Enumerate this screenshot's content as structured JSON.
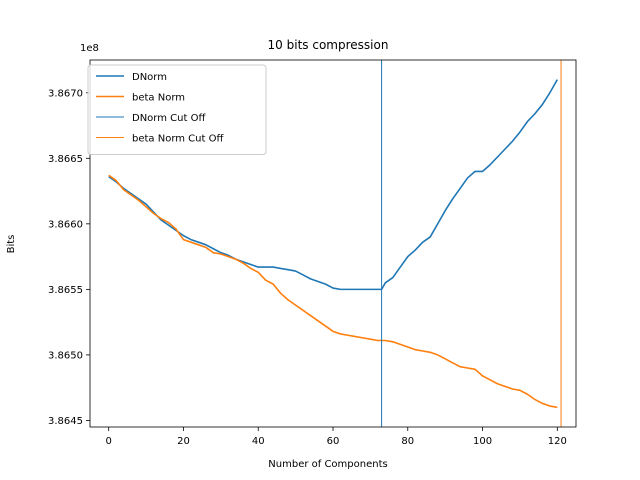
{
  "chart_data": {
    "type": "line",
    "title": "10 bits compression",
    "xlabel": "Number of Components",
    "ylabel": "Bits",
    "y_offset_label": "1e8",
    "xlim": [
      -5,
      125
    ],
    "ylim": [
      3.86445,
      3.86725
    ],
    "y_scale_factor": 100000000,
    "xticks": [
      0,
      20,
      40,
      60,
      80,
      100,
      120
    ],
    "yticks": [
      3.8645,
      3.865,
      3.8655,
      3.866,
      3.8665,
      3.867
    ],
    "ytick_labels": [
      "3.8645",
      "3.8650",
      "3.8655",
      "3.8660",
      "3.8665",
      "3.8670"
    ],
    "legend_position": "upper-left",
    "series": [
      {
        "name": "DNorm",
        "color": "#1f77b4",
        "x": [
          0,
          2,
          4,
          6,
          8,
          10,
          12,
          14,
          16,
          18,
          20,
          22,
          24,
          26,
          28,
          30,
          32,
          34,
          36,
          38,
          40,
          42,
          44,
          46,
          48,
          50,
          52,
          54,
          56,
          58,
          60,
          62,
          64,
          66,
          68,
          70,
          72,
          73,
          74,
          76,
          78,
          80,
          82,
          84,
          86,
          88,
          90,
          92,
          94,
          96,
          98,
          100,
          102,
          104,
          106,
          108,
          110,
          112,
          114,
          116,
          118,
          120
        ],
        "y": [
          3.86636,
          3.86632,
          3.86627,
          3.86623,
          3.86619,
          3.86615,
          3.86609,
          3.86603,
          3.86599,
          3.86595,
          3.86591,
          3.86588,
          3.86586,
          3.86584,
          3.86581,
          3.86578,
          3.86576,
          3.86573,
          3.86571,
          3.86569,
          3.86567,
          3.86567,
          3.86567,
          3.86566,
          3.86565,
          3.86564,
          3.86561,
          3.86558,
          3.86556,
          3.86554,
          3.86551,
          3.8655,
          3.8655,
          3.8655,
          3.8655,
          3.8655,
          3.8655,
          3.8655,
          3.86555,
          3.86559,
          3.86567,
          3.86575,
          3.8658,
          3.86586,
          3.8659,
          3.866,
          3.8661,
          3.86619,
          3.86627,
          3.86635,
          3.8664,
          3.8664,
          3.86645,
          3.86651,
          3.86657,
          3.86663,
          3.8667,
          3.86678,
          3.86684,
          3.86691,
          3.867,
          3.8671
        ]
      },
      {
        "name": "beta Norm",
        "color": "#ff7f0e",
        "x": [
          0,
          2,
          4,
          6,
          8,
          10,
          12,
          14,
          16,
          18,
          20,
          22,
          24,
          26,
          28,
          30,
          32,
          34,
          36,
          38,
          40,
          42,
          44,
          46,
          48,
          50,
          52,
          54,
          56,
          58,
          60,
          62,
          64,
          66,
          68,
          70,
          72,
          74,
          76,
          78,
          80,
          82,
          84,
          86,
          88,
          90,
          92,
          94,
          96,
          98,
          100,
          102,
          104,
          106,
          108,
          110,
          112,
          114,
          116,
          118,
          120
        ],
        "y": [
          3.86637,
          3.86633,
          3.86626,
          3.86622,
          3.86618,
          3.86613,
          3.86608,
          3.86604,
          3.86601,
          3.86596,
          3.86588,
          3.86586,
          3.86584,
          3.86582,
          3.86578,
          3.86577,
          3.86575,
          3.86573,
          3.8657,
          3.86566,
          3.86563,
          3.86557,
          3.86554,
          3.86547,
          3.86542,
          3.86538,
          3.86534,
          3.8653,
          3.86526,
          3.86522,
          3.86518,
          3.86516,
          3.86515,
          3.86514,
          3.86513,
          3.86512,
          3.86511,
          3.86511,
          3.8651,
          3.86508,
          3.86506,
          3.86504,
          3.86503,
          3.86502,
          3.865,
          3.86497,
          3.86494,
          3.86491,
          3.8649,
          3.86489,
          3.86484,
          3.86481,
          3.86478,
          3.86476,
          3.86474,
          3.86473,
          3.8647,
          3.86466,
          3.86463,
          3.86461,
          3.8646
        ]
      },
      {
        "name": "DNorm Cut Off",
        "color": "#1f77b4",
        "vline_x": 73
      },
      {
        "name": "beta Norm Cut Off",
        "color": "#ff7f0e",
        "vline_x": 121
      }
    ]
  }
}
